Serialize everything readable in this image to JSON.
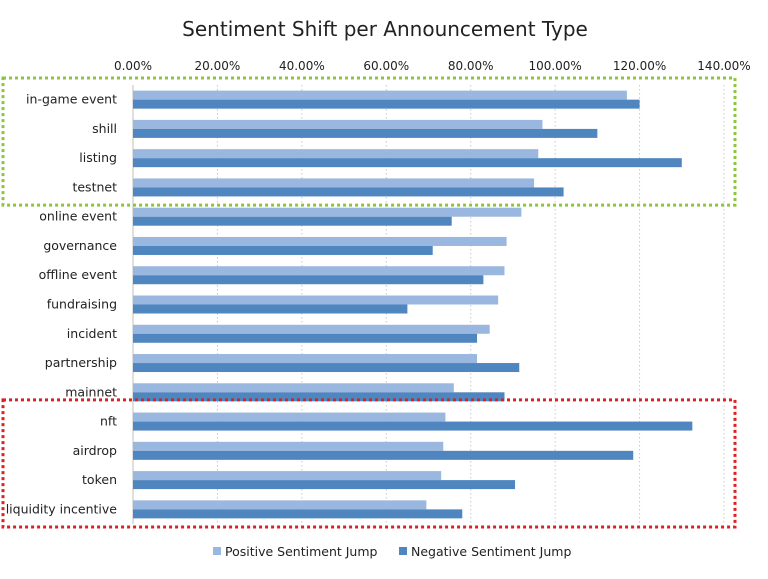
{
  "chart_data": {
    "type": "bar",
    "orientation": "horizontal",
    "title": "Sentiment Shift per Announcement Type",
    "xlabel": "",
    "ylabel": "",
    "xlim": [
      0,
      1.4
    ],
    "x_ticks": [
      "0.00%",
      "20.00%",
      "40.00%",
      "60.00%",
      "80.00%",
      "100.00%",
      "120.00%",
      "140.00%"
    ],
    "categories": [
      "in-game event",
      "shill",
      "listing",
      "testnet",
      "online event",
      "governance",
      "offline event",
      "fundraising",
      "incident",
      "partnership",
      "mainnet",
      "nft",
      "airdrop",
      "token",
      "liquidity incentive"
    ],
    "series": [
      {
        "name": "Positive Sentiment Jump",
        "color": "#9ab7df",
        "values": [
          1.17,
          0.97,
          0.96,
          0.95,
          0.92,
          0.885,
          0.88,
          0.865,
          0.845,
          0.815,
          0.76,
          0.74,
          0.735,
          0.73,
          0.695
        ]
      },
      {
        "name": "Negative Sentiment Jump",
        "color": "#4f86c0",
        "values": [
          1.2,
          1.1,
          1.3,
          1.02,
          0.755,
          0.71,
          0.83,
          0.65,
          0.815,
          0.915,
          0.88,
          1.325,
          1.185,
          0.905,
          0.78
        ]
      }
    ],
    "grid": "vertical-dotted",
    "legend": "bottom-center",
    "highlight_boxes": [
      {
        "color": "#8cc63f",
        "style": "dotted",
        "categories": [
          "in-game event",
          "shill",
          "listing",
          "testnet"
        ]
      },
      {
        "color": "#e02020",
        "style": "dotted",
        "categories": [
          "nft",
          "airdrop",
          "token",
          "liquidity incentive"
        ]
      }
    ]
  }
}
